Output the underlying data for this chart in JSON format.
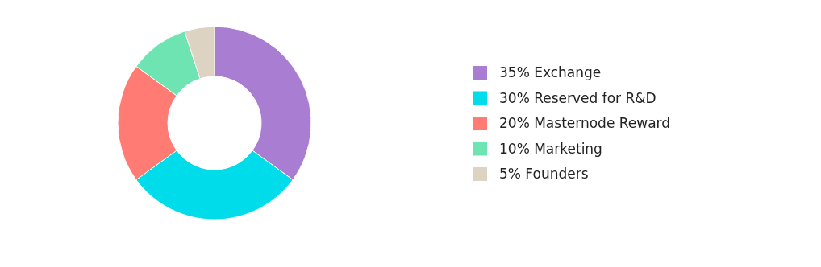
{
  "chart_data": {
    "type": "donut",
    "categories": [
      "35% Exchange",
      "30% Reserved for R&D",
      "20% Masternode Reward",
      "10% Marketing",
      "5% Founders"
    ],
    "values": [
      35,
      30,
      20,
      10,
      5
    ],
    "colors": [
      "#a97dd2",
      "#00dcea",
      "#ff7b73",
      "#6de4b2",
      "#dcd3c2"
    ],
    "legend": "right"
  }
}
